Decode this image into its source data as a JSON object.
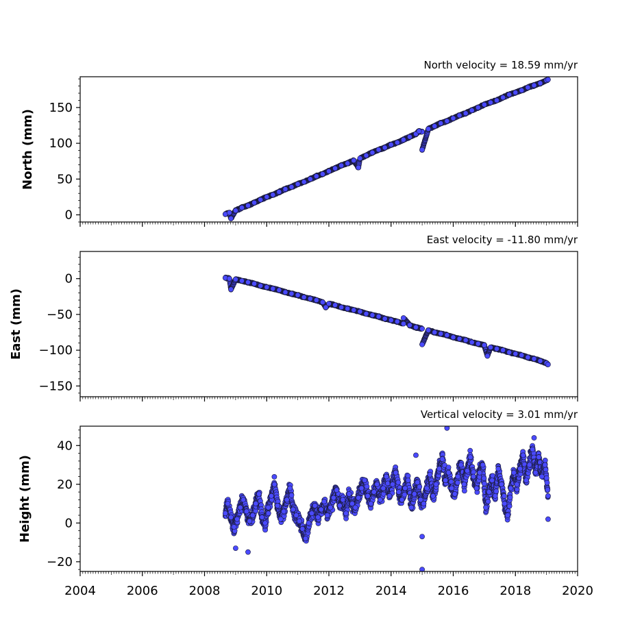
{
  "chart_data": [
    {
      "type": "scatter",
      "title": "North velocity = 18.59 mm/yr",
      "ylabel": "North (mm)",
      "xlim": [
        2004,
        2020
      ],
      "ylim": [
        -10,
        193
      ],
      "yticks": [
        0,
        50,
        100,
        150
      ],
      "yticklabels": [
        "0",
        "50",
        "100",
        "150"
      ],
      "x_tick_labels_shown": false,
      "series": [
        {
          "color": "#4a4aff",
          "x": [
            2008.67,
            2008.8,
            2009.0,
            2009.2,
            2009.4,
            2009.6,
            2009.8,
            2010.0,
            2010.2,
            2010.4,
            2010.6,
            2010.8,
            2011.0,
            2011.2,
            2011.4,
            2011.6,
            2011.8,
            2012.0,
            2012.2,
            2012.4,
            2012.6,
            2012.8,
            2013.0,
            2013.2,
            2013.4,
            2013.6,
            2013.8,
            2014.0,
            2014.2,
            2014.4,
            2014.6,
            2014.8,
            2015.0,
            2015.2,
            2015.4,
            2015.6,
            2015.8,
            2016.0,
            2016.2,
            2016.4,
            2016.6,
            2016.8,
            2017.0,
            2017.2,
            2017.4,
            2017.6,
            2017.8,
            2018.0,
            2018.2,
            2018.4,
            2018.6,
            2018.8,
            2019.0,
            2019.05,
            2008.85,
            2012.95,
            2015.0,
            2014.9
          ],
          "y": [
            1,
            3,
            6,
            10,
            13,
            17,
            21,
            25,
            28,
            32,
            36,
            39,
            43,
            46,
            50,
            54,
            57,
            61,
            65,
            69,
            72,
            76,
            79,
            83,
            87,
            91,
            94,
            98,
            101,
            105,
            109,
            113,
            116,
            120,
            124,
            128,
            131,
            135,
            139,
            142,
            146,
            150,
            154,
            157,
            160,
            164,
            168,
            171,
            174,
            178,
            181,
            184,
            188,
            189,
            -5,
            66,
            91,
            117
          ]
        }
      ]
    },
    {
      "type": "scatter",
      "title": "East velocity = -11.80 mm/yr",
      "ylabel": "East (mm)",
      "xlim": [
        2004,
        2020
      ],
      "ylim": [
        -165,
        38
      ],
      "yticks": [
        0,
        -50,
        -100,
        -150
      ],
      "yticklabels": [
        "0",
        "−50",
        "−100",
        "−150"
      ],
      "x_tick_labels_shown": false,
      "series": [
        {
          "color": "#4a4aff",
          "x": [
            2008.67,
            2008.8,
            2009.0,
            2009.2,
            2009.4,
            2009.6,
            2009.8,
            2010.0,
            2010.2,
            2010.4,
            2010.6,
            2010.8,
            2011.0,
            2011.2,
            2011.4,
            2011.6,
            2011.8,
            2012.0,
            2012.2,
            2012.4,
            2012.6,
            2012.8,
            2013.0,
            2013.2,
            2013.4,
            2013.6,
            2013.8,
            2014.0,
            2014.2,
            2014.4,
            2014.6,
            2014.8,
            2015.0,
            2015.2,
            2015.4,
            2015.6,
            2015.8,
            2016.0,
            2016.2,
            2016.4,
            2016.6,
            2016.8,
            2017.0,
            2017.2,
            2017.4,
            2017.6,
            2017.8,
            2018.0,
            2018.2,
            2018.4,
            2018.6,
            2018.8,
            2019.0,
            2019.05,
            2008.85,
            2011.9,
            2015.0,
            2017.1,
            2014.4
          ],
          "y": [
            1,
            0,
            -1,
            -3,
            -5,
            -7,
            -10,
            -12,
            -14,
            -16,
            -19,
            -21,
            -23,
            -26,
            -28,
            -30,
            -33,
            -35,
            -37,
            -40,
            -42,
            -44,
            -46,
            -49,
            -51,
            -53,
            -56,
            -58,
            -60,
            -63,
            -65,
            -68,
            -70,
            -72,
            -75,
            -77,
            -79,
            -82,
            -84,
            -86,
            -89,
            -91,
            -93,
            -96,
            -98,
            -100,
            -103,
            -105,
            -107,
            -110,
            -112,
            -115,
            -118,
            -120,
            -15,
            -40,
            -92,
            -108,
            -55
          ]
        }
      ]
    },
    {
      "type": "scatter",
      "title": "Vertical velocity = 3.01 mm/yr",
      "ylabel": "Height (mm)",
      "xlim": [
        2004,
        2020
      ],
      "ylim": [
        -25,
        50
      ],
      "yticks": [
        -20,
        0,
        20,
        40
      ],
      "yticklabels": [
        "−20",
        "0",
        "20",
        "40"
      ],
      "xticks": [
        2004,
        2006,
        2008,
        2010,
        2012,
        2014,
        2016,
        2018,
        2020
      ],
      "xticklabels": [
        "2004",
        "2006",
        "2008",
        "2010",
        "2012",
        "2014",
        "2016",
        "2018",
        "2020"
      ],
      "series": [
        {
          "color": "#4a4aff",
          "x": [
            2008.67,
            2008.75,
            2008.85,
            2008.95,
            2009.05,
            2009.15,
            2009.25,
            2009.35,
            2009.45,
            2009.55,
            2009.65,
            2009.75,
            2009.85,
            2009.95,
            2010.05,
            2010.15,
            2010.25,
            2010.35,
            2010.45,
            2010.55,
            2010.65,
            2010.75,
            2010.85,
            2010.95,
            2011.05,
            2011.15,
            2011.25,
            2011.35,
            2011.45,
            2011.55,
            2011.65,
            2011.75,
            2011.85,
            2011.95,
            2012.05,
            2012.15,
            2012.25,
            2012.35,
            2012.45,
            2012.55,
            2012.65,
            2012.75,
            2012.85,
            2012.95,
            2013.05,
            2013.15,
            2013.25,
            2013.35,
            2013.45,
            2013.55,
            2013.65,
            2013.75,
            2013.85,
            2013.95,
            2014.05,
            2014.15,
            2014.25,
            2014.35,
            2014.45,
            2014.55,
            2014.65,
            2014.75,
            2014.85,
            2014.95,
            2015.05,
            2015.15,
            2015.25,
            2015.35,
            2015.45,
            2015.55,
            2015.65,
            2015.75,
            2015.85,
            2015.95,
            2016.05,
            2016.15,
            2016.25,
            2016.35,
            2016.45,
            2016.55,
            2016.65,
            2016.75,
            2016.85,
            2016.95,
            2017.05,
            2017.15,
            2017.25,
            2017.35,
            2017.45,
            2017.55,
            2017.65,
            2017.75,
            2017.85,
            2017.95,
            2018.05,
            2018.15,
            2018.25,
            2018.35,
            2018.45,
            2018.55,
            2018.65,
            2018.75,
            2018.85,
            2018.95,
            2019.05
          ],
          "y": [
            5,
            10,
            3,
            -2,
            2,
            8,
            12,
            6,
            1,
            4,
            10,
            15,
            3,
            0,
            8,
            14,
            20,
            9,
            2,
            6,
            12,
            18,
            7,
            4,
            1,
            -3,
            -8,
            0,
            5,
            9,
            3,
            7,
            11,
            4,
            8,
            13,
            17,
            9,
            12,
            5,
            15,
            10,
            8,
            13,
            18,
            22,
            14,
            10,
            16,
            20,
            12,
            18,
            24,
            14,
            20,
            26,
            16,
            12,
            18,
            22,
            8,
            15,
            21,
            12,
            10,
            18,
            25,
            14,
            20,
            28,
            33,
            22,
            26,
            18,
            15,
            24,
            30,
            20,
            27,
            34,
            24,
            18,
            26,
            30,
            8,
            16,
            22,
            14,
            28,
            20,
            10,
            4,
            18,
            26,
            20,
            28,
            35,
            22,
            30,
            38,
            26,
            34,
            24,
            30,
            14
          ],
          "outliers": {
            "x": [
              2009.0,
              2009.4,
              2015.0,
              2015.0,
              2015.8,
              2019.05,
              2018.6,
              2014.8
            ],
            "y": [
              -13,
              -15,
              -24,
              -7,
              49,
              2,
              44,
              35
            ]
          }
        }
      ]
    }
  ]
}
